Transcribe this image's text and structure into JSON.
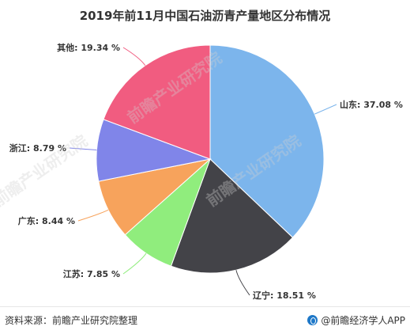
{
  "chart_data": {
    "type": "pie",
    "title": "2019年前11月中国石油沥青产量地区分布情况",
    "slices": [
      {
        "label": "山东",
        "value": 37.08,
        "display": "山东: 37.08 %",
        "color": "#7cb5ec"
      },
      {
        "label": "辽宁",
        "value": 18.51,
        "display": "辽宁: 18.51 %",
        "color": "#434348"
      },
      {
        "label": "江苏",
        "value": 7.85,
        "display": "江苏: 7.85 %",
        "color": "#90ed7d"
      },
      {
        "label": "广东",
        "value": 8.44,
        "display": "广东: 8.44 %",
        "color": "#f7a35c"
      },
      {
        "label": "浙江",
        "value": 8.79,
        "display": "浙江: 8.79 %",
        "color": "#8085e9"
      },
      {
        "label": "其他",
        "value": 19.34,
        "display": "其他: 19.34 %",
        "color": "#f15c80"
      }
    ],
    "start_angle": "12 o'clock",
    "direction": "clockwise"
  },
  "footer": {
    "source": "资料来源：前瞻产业研究院整理",
    "brand": "@前瞻经济学人APP"
  },
  "watermark": "前瞻产业研究院"
}
